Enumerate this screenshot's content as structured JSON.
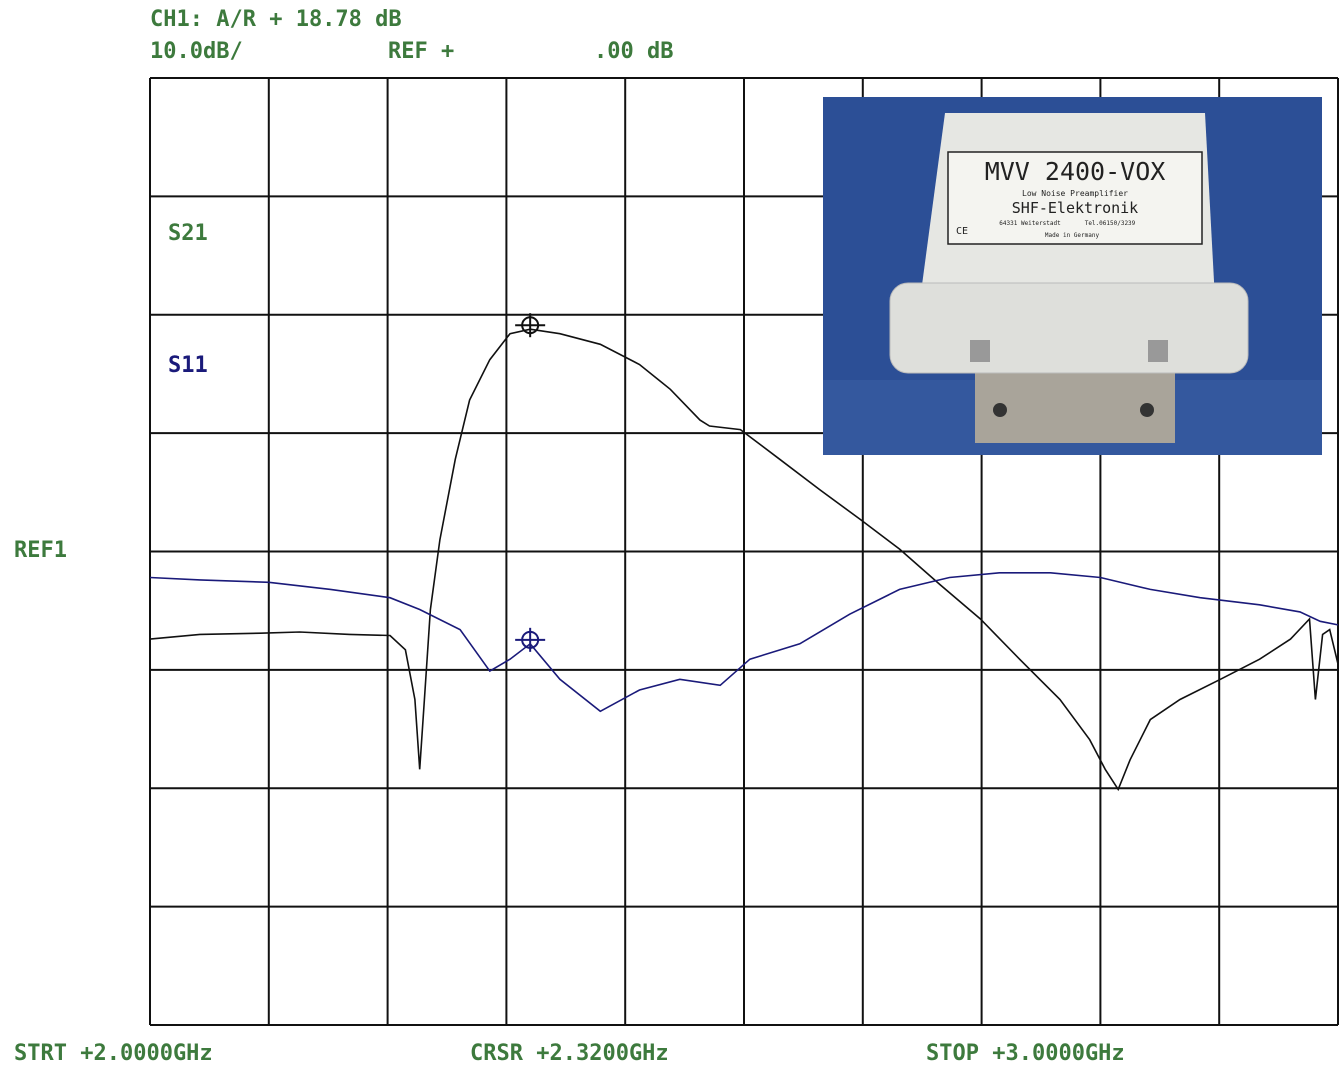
{
  "chart_data": {
    "type": "line",
    "header": "CH1: A/R + 18.78 dB",
    "scale_label": "10.0dB/",
    "ref_label": "REF +",
    "ref_value_label": ".00 dB",
    "ref_marker": "REF1",
    "start_label": "STRT +2.0000GHz",
    "stop_label": "STOP +3.0000GHz",
    "cursor": {
      "value": 2.32,
      "label": "CRSR +2.3200GHz"
    },
    "xlim": [
      2.0,
      3.0
    ],
    "xticks": [
      2.0,
      2.1,
      2.2,
      2.3,
      2.4,
      2.5,
      2.6,
      2.7,
      2.8,
      2.9,
      3.0
    ],
    "ylim": [
      -40,
      40
    ],
    "yticks": [
      -40,
      -30,
      -20,
      -10,
      0,
      10,
      20,
      30,
      40
    ],
    "grid": true,
    "series": [
      {
        "name": "S21",
        "color": "#111111",
        "x": [
          2.0,
          2.042,
          2.093,
          2.126,
          2.168,
          2.202,
          2.215,
          2.223,
          2.227,
          2.231,
          2.236,
          2.244,
          2.257,
          2.269,
          2.286,
          2.303,
          2.32,
          2.345,
          2.379,
          2.412,
          2.438,
          2.463,
          2.471,
          2.497,
          2.53,
          2.564,
          2.598,
          2.631,
          2.665,
          2.699,
          2.732,
          2.766,
          2.791,
          2.804,
          2.815,
          2.825,
          2.842,
          2.867,
          2.901,
          2.934,
          2.96,
          2.976,
          2.981,
          2.987,
          2.993,
          3.0
        ],
        "values": [
          -7.4,
          -7.0,
          -6.9,
          -6.8,
          -7.0,
          -7.1,
          -8.3,
          -12.5,
          -18.4,
          -12.5,
          -4.9,
          1.0,
          7.8,
          12.8,
          16.2,
          18.4,
          18.78,
          18.4,
          17.5,
          15.8,
          13.7,
          11.1,
          10.6,
          10.3,
          7.8,
          5.2,
          2.7,
          0.2,
          -2.8,
          -5.7,
          -9.1,
          -12.5,
          -15.9,
          -18.4,
          -20.1,
          -17.6,
          -14.2,
          -12.5,
          -10.8,
          -9.1,
          -7.4,
          -5.7,
          -12.5,
          -7.0,
          -6.6,
          -9.5
        ]
      },
      {
        "name": "S11",
        "color": "#1a1a7a",
        "x": [
          2.0,
          2.042,
          2.1,
          2.152,
          2.202,
          2.227,
          2.261,
          2.286,
          2.303,
          2.32,
          2.345,
          2.379,
          2.412,
          2.446,
          2.48,
          2.505,
          2.547,
          2.589,
          2.631,
          2.673,
          2.715,
          2.758,
          2.8,
          2.842,
          2.884,
          2.934,
          2.968,
          2.985,
          3.0
        ],
        "values": [
          -2.2,
          -2.4,
          -2.6,
          -3.2,
          -3.9,
          -4.9,
          -6.6,
          -10.1,
          -9.1,
          -7.8,
          -10.8,
          -13.5,
          -11.7,
          -10.8,
          -11.3,
          -9.1,
          -7.8,
          -5.3,
          -3.2,
          -2.2,
          -1.8,
          -1.8,
          -2.2,
          -3.2,
          -3.9,
          -4.5,
          -5.1,
          -5.9,
          -6.2
        ]
      }
    ]
  },
  "inset": {
    "model": "MVV 2400-VOX",
    "subtitle": "Low Noise Preamplifier",
    "maker": "SHF-Elektronik",
    "address": "64331 Weiterstadt",
    "phone": "Tel.06150/3239",
    "origin": "Made in Germany",
    "mark": "CE"
  }
}
